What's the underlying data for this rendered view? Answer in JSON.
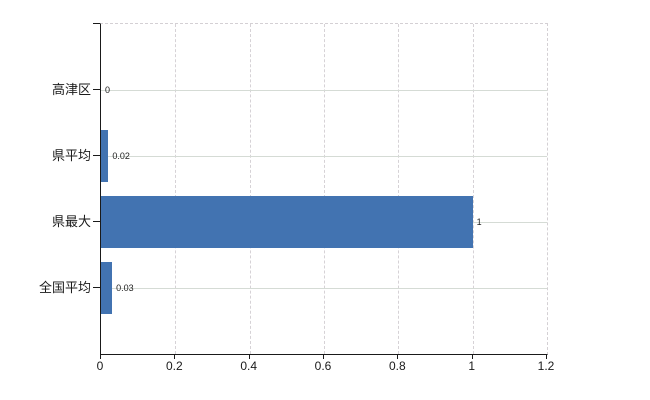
{
  "chart_data": {
    "type": "bar",
    "orientation": "horizontal",
    "title": "",
    "xlabel": "",
    "ylabel": "",
    "categories": [
      "高津区",
      "県平均",
      "県最大",
      "全国平均"
    ],
    "values": [
      0,
      0.02,
      1,
      0.03
    ],
    "value_labels": [
      "0",
      "0.02",
      "1",
      "0.03"
    ],
    "xlim": [
      0,
      1.2
    ],
    "x_ticks": [
      0,
      0.2,
      0.4,
      0.6,
      0.8,
      1,
      1.2
    ],
    "x_tick_labels": [
      "0",
      "0.2",
      "0.4",
      "0.6",
      "0.8",
      "1",
      "1.2"
    ],
    "grid": true,
    "legend": false,
    "colors": {
      "bar": "#4273b1",
      "axis": "#1a1a1a",
      "grid_h": "#d5dbd5",
      "grid_v": "#d6d2d6",
      "value_label": "#222222",
      "background": "#ffffff"
    }
  }
}
